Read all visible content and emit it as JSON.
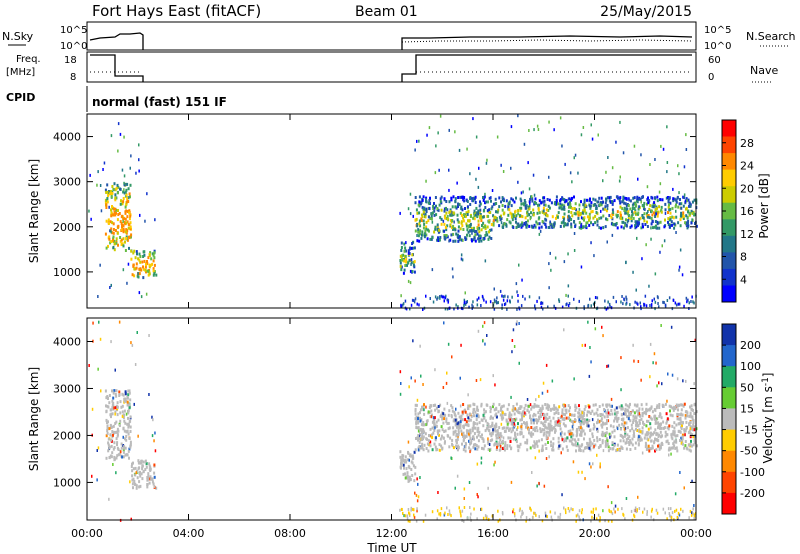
{
  "header": {
    "station": "Fort Hays East (fitACF)",
    "beam": "Beam 01",
    "date": "25/May/2015"
  },
  "strips": {
    "nsky_label": "N.Sky",
    "nsky_ticks": [
      "10^5",
      "10^0"
    ],
    "nsearch_label": "N.Search",
    "freq_label_line1": "Freq.",
    "freq_label_line2": "[MHz]",
    "freq_ticks": [
      "18",
      "8"
    ],
    "nave_label": "Nave",
    "nave_ticks": [
      "60",
      "0"
    ],
    "cpid_label": "CPID",
    "cpid_value": "normal (fast) 151 IF"
  },
  "x_axis": {
    "title": "Time UT",
    "ticks": [
      "00:00",
      "04:00",
      "08:00",
      "12:00",
      "16:00",
      "20:00",
      "00:00"
    ]
  },
  "chart_data": [
    {
      "type": "heatmap",
      "panel": "power",
      "ylabel": "Slant Range [km]",
      "ylim": [
        200,
        4500
      ],
      "yticks": [
        "4000",
        "3000",
        "2000",
        "1000"
      ],
      "xlim": [
        0,
        24
      ],
      "colorbar": {
        "label": "Power [dB]",
        "ticks": [
          "28",
          "24",
          "20",
          "16",
          "12",
          "8",
          "4"
        ],
        "colors": [
          "#ff0000",
          "#ff4400",
          "#ff8800",
          "#ffcc00",
          "#cccc00",
          "#66bb44",
          "#339966",
          "#227788",
          "#2255aa",
          "#1133cc",
          "#0000ff"
        ]
      },
      "echo_regions": [
        {
          "t_start": 0.7,
          "t_end": 1.7,
          "range_low": 1500,
          "range_high": 3000,
          "power_db": 20
        },
        {
          "t_start": 1.7,
          "t_end": 2.7,
          "range_low": 900,
          "range_high": 1500,
          "power_db": 18
        },
        {
          "t_start": 12.3,
          "t_end": 12.9,
          "range_low": 1000,
          "range_high": 1700,
          "power_db": 16
        },
        {
          "t_start": 12.9,
          "t_end": 16.0,
          "range_low": 1700,
          "range_high": 2700,
          "power_db": 12
        },
        {
          "t_start": 16.0,
          "t_end": 24.0,
          "range_low": 2000,
          "range_high": 2700,
          "power_db": 10
        }
      ]
    },
    {
      "type": "heatmap",
      "panel": "velocity",
      "ylabel": "Slant Range [km]",
      "ylim": [
        200,
        4500
      ],
      "yticks": [
        "4000",
        "3000",
        "2000",
        "1000"
      ],
      "xlim": [
        0,
        24
      ],
      "colorbar": {
        "label": "Velocity [m s^-1]",
        "ticks": [
          "200",
          "100",
          "50",
          "15",
          "-15",
          "-50",
          "-100",
          "-200"
        ],
        "colors": [
          "#1133aa",
          "#2266cc",
          "#22aa66",
          "#66cc33",
          "#bbbbbb",
          "#ffcc00",
          "#ff8800",
          "#ff4400",
          "#ff0000"
        ]
      },
      "echo_regions": [
        {
          "t_start": 0.7,
          "t_end": 1.7,
          "range_low": 1500,
          "range_high": 3000,
          "velocity": 0
        },
        {
          "t_start": 1.7,
          "t_end": 2.7,
          "range_low": 900,
          "range_high": 1500,
          "velocity": 0
        },
        {
          "t_start": 12.3,
          "t_end": 12.9,
          "range_low": 1000,
          "range_high": 1700,
          "velocity": 0
        },
        {
          "t_start": 12.9,
          "t_end": 24.0,
          "range_low": 1700,
          "range_high": 2700,
          "velocity": 0
        }
      ]
    }
  ]
}
